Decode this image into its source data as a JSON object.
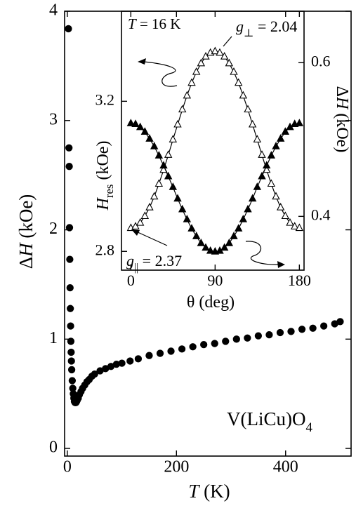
{
  "chart_data": [
    {
      "type": "scatter",
      "xlabel": {
        "symbol": "T",
        "unit": "(K)"
      },
      "ylabel": {
        "prefix": "Δ",
        "symbol": "H",
        "unit": "(kOe)"
      },
      "annotation": {
        "text": "V(LiCu)O",
        "subscript": "4"
      },
      "xlim": [
        -5,
        520
      ],
      "xticks": [
        0,
        200,
        400
      ],
      "ylim": [
        -0.07,
        4.0
      ],
      "yticks": [
        0,
        1,
        2,
        3,
        4
      ],
      "series": [
        {
          "marker": "circle",
          "filled": true,
          "color": "#000000",
          "x": [
            2,
            3,
            3.5,
            4,
            4.5,
            5,
            5.5,
            6,
            6.5,
            7,
            7.5,
            8,
            9,
            10,
            11,
            12,
            13,
            14,
            15,
            16,
            17,
            18,
            20,
            22,
            25,
            28,
            32,
            36,
            40,
            45,
            50,
            60,
            70,
            80,
            90,
            100,
            115,
            130,
            150,
            170,
            190,
            210,
            230,
            250,
            270,
            290,
            310,
            330,
            350,
            370,
            390,
            410,
            430,
            450,
            470,
            490,
            500
          ],
          "values": [
            3.84,
            2.75,
            2.58,
            2.02,
            1.73,
            1.47,
            1.28,
            1.12,
            0.98,
            0.88,
            0.8,
            0.72,
            0.62,
            0.55,
            0.5,
            0.46,
            0.43,
            0.42,
            0.42,
            0.42,
            0.43,
            0.44,
            0.46,
            0.49,
            0.52,
            0.55,
            0.58,
            0.61,
            0.63,
            0.66,
            0.68,
            0.71,
            0.73,
            0.75,
            0.77,
            0.78,
            0.8,
            0.82,
            0.85,
            0.87,
            0.89,
            0.91,
            0.93,
            0.95,
            0.96,
            0.98,
            1.0,
            1.01,
            1.03,
            1.04,
            1.06,
            1.07,
            1.09,
            1.1,
            1.12,
            1.14,
            1.16
          ]
        }
      ]
    },
    {
      "type": "scatter",
      "xlabel": {
        "symbol": "θ",
        "unit": "(deg)"
      },
      "ylabel": {
        "symbol": "H",
        "subscript": "res",
        "unit": "(kOe)"
      },
      "y2label": {
        "prefix": "Δ",
        "symbol": "H",
        "unit": "(kOe)"
      },
      "annotation": {
        "symbol": "T",
        "text": "= 16 K"
      },
      "g_perp": {
        "symbol": "g",
        "subscript": "⊥",
        "text": "= 2.04"
      },
      "g_par": {
        "symbol": "g",
        "subscript": "||",
        "text": "= 2.37"
      },
      "xlim": [
        -10,
        185
      ],
      "xticks": [
        0,
        90,
        180
      ],
      "ylim": [
        2.75,
        3.44
      ],
      "yticks": [
        2.8,
        3.2
      ],
      "y2lim": [
        0.33,
        0.667
      ],
      "y2ticks": [
        0.4,
        0.6
      ],
      "series": [
        {
          "marker": "triangle",
          "filled": false,
          "color": "#000000",
          "line": true,
          "x": [
            0,
            5,
            10,
            15,
            20,
            25,
            30,
            35,
            40,
            45,
            50,
            55,
            60,
            65,
            70,
            75,
            80,
            85,
            90,
            95,
            100,
            105,
            110,
            115,
            120,
            125,
            130,
            135,
            140,
            145,
            150,
            155,
            160,
            165,
            170,
            175,
            180
          ],
          "values": [
            2.862,
            2.866,
            2.876,
            2.894,
            2.917,
            2.946,
            2.98,
            3.017,
            3.057,
            3.098,
            3.138,
            3.178,
            3.215,
            3.249,
            3.278,
            3.301,
            3.319,
            3.329,
            3.333,
            3.329,
            3.319,
            3.301,
            3.278,
            3.249,
            3.215,
            3.178,
            3.138,
            3.098,
            3.057,
            3.017,
            2.98,
            2.946,
            2.917,
            2.894,
            2.876,
            2.866,
            2.862
          ]
        },
        {
          "marker": "triangle",
          "filled": true,
          "color": "#000000",
          "line": true,
          "axis": "y2",
          "x": [
            0,
            5,
            10,
            15,
            20,
            25,
            30,
            35,
            40,
            45,
            50,
            55,
            60,
            65,
            70,
            75,
            80,
            85,
            90,
            95,
            100,
            105,
            110,
            115,
            120,
            125,
            130,
            135,
            140,
            145,
            150,
            155,
            160,
            165,
            170,
            175,
            180
          ],
          "values": [
            0.521,
            0.52,
            0.516,
            0.51,
            0.501,
            0.491,
            0.479,
            0.466,
            0.452,
            0.438,
            0.423,
            0.409,
            0.396,
            0.384,
            0.374,
            0.365,
            0.359,
            0.355,
            0.354,
            0.355,
            0.359,
            0.365,
            0.374,
            0.384,
            0.396,
            0.409,
            0.423,
            0.438,
            0.452,
            0.466,
            0.479,
            0.491,
            0.501,
            0.51,
            0.516,
            0.52,
            0.521
          ]
        }
      ]
    }
  ]
}
